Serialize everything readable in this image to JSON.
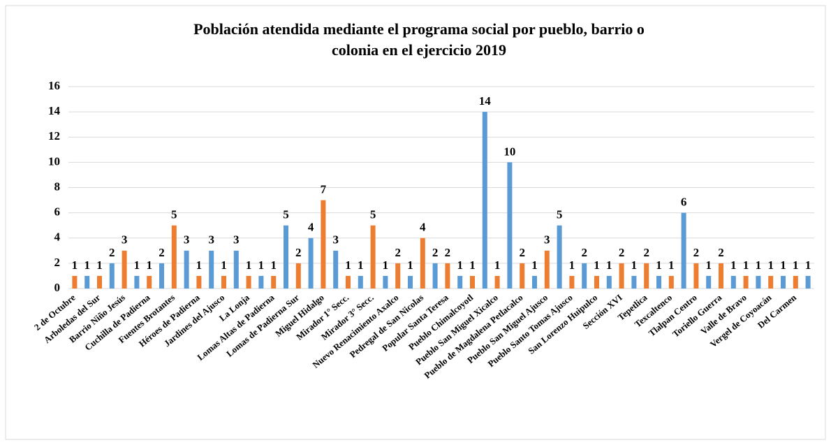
{
  "chart_data": {
    "type": "bar",
    "title": [
      "Población atendida mediante el programa social por pueblo, barrio o",
      "colonia en el ejercicio 2019"
    ],
    "categories": [
      "2 de Octubre",
      null,
      "Arboledas del Sur",
      null,
      "Barrio Niño Jesús",
      null,
      "Cuchilla de Padierna",
      null,
      "Fuentes Brotantes",
      null,
      "Héroes de Padierna",
      null,
      "Jardines del Ajusco",
      null,
      "La Lonja",
      null,
      "Lomas Altas de Padierna",
      null,
      "Lomas de Padierna Sur",
      null,
      "Miguel Hidalgo",
      null,
      "Mirador 1° Secc.",
      null,
      "Mirador 3° Secc.",
      null,
      "Nuevo Renacimiento Axalco",
      null,
      "Pedregal de San Nicolas",
      null,
      "Popular Santa Teresa",
      null,
      "Pueblo Chimalcoyotl",
      null,
      "Pueblo San Miguel Xicalco",
      null,
      "Pueblo de Magdalena Petlacalco",
      null,
      "Pueblo San Miguel Ajusco",
      null,
      "Pueblo Santo Tomas Ajusco",
      null,
      "San Lorenzo Huipulco",
      null,
      "Sección XVI",
      null,
      "Tepetlica",
      null,
      "Texcaltenco",
      null,
      "Tlalpan Centro",
      null,
      "Toriello Guerra",
      null,
      "Valle de Bravo",
      null,
      "Vergel de Coyoacán",
      null,
      "Del Carmen",
      null
    ],
    "values": [
      1,
      1,
      1,
      2,
      3,
      1,
      1,
      2,
      5,
      3,
      1,
      3,
      1,
      3,
      1,
      1,
      1,
      5,
      2,
      4,
      7,
      3,
      1,
      1,
      5,
      1,
      2,
      1,
      4,
      2,
      2,
      1,
      1,
      14,
      1,
      10,
      2,
      1,
      3,
      5,
      1,
      2,
      1,
      1,
      2,
      1,
      2,
      1,
      1,
      6,
      2,
      1,
      2,
      1,
      1,
      1,
      1,
      1,
      1,
      1
    ],
    "colors": [
      "#ed7d31",
      "#5b9bd5"
    ],
    "ylim": [
      0,
      16
    ],
    "yticks": [
      0,
      2,
      4,
      6,
      8,
      10,
      12,
      14,
      16
    ],
    "grid": true
  }
}
